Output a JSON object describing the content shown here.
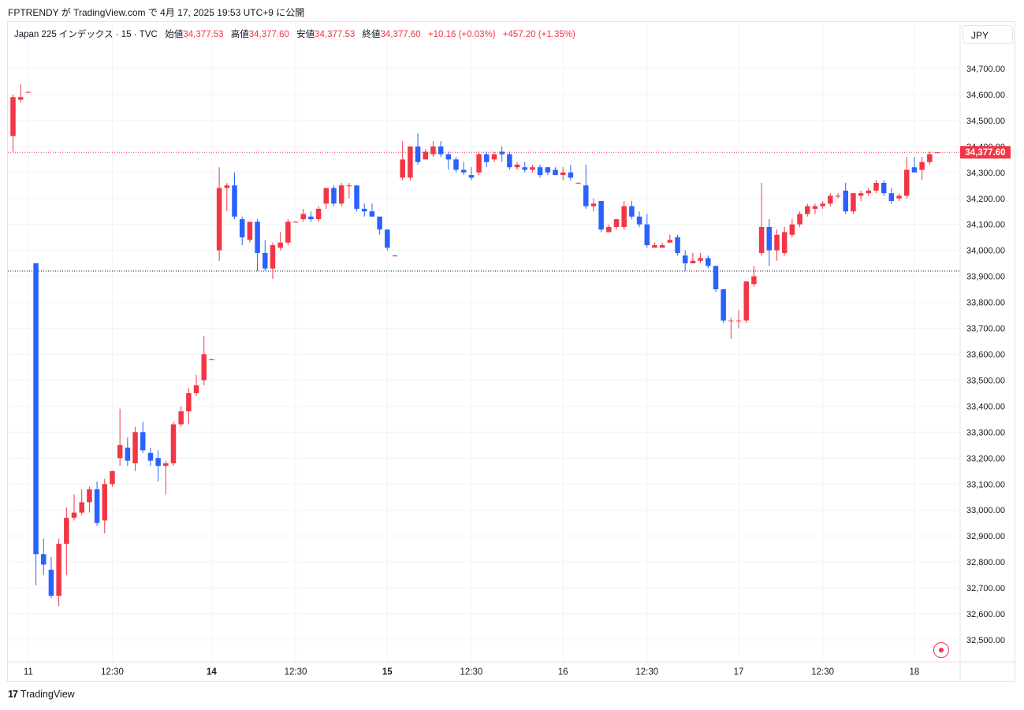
{
  "header": {
    "text": "FPTRENDY が TradingView.com で 4月 17, 2025 19:53 UTC+9 に公開"
  },
  "legend": {
    "symbol": "Japan 225 インデックス · 15 · TVC",
    "open_label": "始値",
    "open_value": "34,377.53",
    "high_label": "高値",
    "high_value": "34,377.60",
    "low_label": "安値",
    "low_value": "34,377.53",
    "close_label": "終値",
    "close_value": "34,377.60",
    "change": "+10.16 (+0.03%)",
    "change2": "+457.20 (+1.35%)"
  },
  "currency": "JPY",
  "footer": {
    "logo_mark": "17",
    "logo_text": "TradingView"
  },
  "icons": {
    "target": "target-icon"
  },
  "colors": {
    "up": "#f23645",
    "down": "#2962ff",
    "grid": "#f0f3fa",
    "text": "#131722"
  },
  "chart_data": {
    "type": "candlestick",
    "ylim": [
      32450,
      34780
    ],
    "y_ticks": [
      "32,500.00",
      "32,600.00",
      "32,700.00",
      "32,800.00",
      "32,900.00",
      "33,000.00",
      "33,100.00",
      "33,200.00",
      "33,300.00",
      "33,400.00",
      "33,500.00",
      "33,600.00",
      "33,700.00",
      "33,800.00",
      "33,900.00",
      "34,000.00",
      "34,100.00",
      "34,200.00",
      "34,300.00",
      "34,400.00",
      "34,500.00",
      "34,600.00",
      "34,700.00"
    ],
    "y_tick_values": [
      32500,
      32600,
      32700,
      32800,
      32900,
      33000,
      33100,
      33200,
      33300,
      33400,
      33500,
      33600,
      33700,
      33800,
      33900,
      34000,
      34100,
      34200,
      34300,
      34400,
      34500,
      34600,
      34700
    ],
    "x_ticks": [
      {
        "label": "11",
        "index": 2,
        "bold": false
      },
      {
        "label": "12:30",
        "index": 13,
        "bold": false
      },
      {
        "label": "14",
        "index": 26,
        "bold": true
      },
      {
        "label": "12:30",
        "index": 37,
        "bold": false
      },
      {
        "label": "15",
        "index": 49,
        "bold": true
      },
      {
        "label": "12:30",
        "index": 60,
        "bold": false
      },
      {
        "label": "16",
        "index": 72,
        "bold": false
      },
      {
        "label": "12:30",
        "index": 83,
        "bold": false
      },
      {
        "label": "17",
        "index": 95,
        "bold": false
      },
      {
        "label": "12:30",
        "index": 106,
        "bold": false
      },
      {
        "label": "18",
        "index": 118,
        "bold": false
      }
    ],
    "last_price": 34377.6,
    "last_price_label": "34,377.60",
    "prev_close": 33920,
    "candles": [
      {
        "i": 0,
        "o": 34440,
        "h": 34600,
        "l": 34380,
        "c": 34590
      },
      {
        "i": 1,
        "o": 34580,
        "h": 34640,
        "l": 34570,
        "c": 34590
      },
      {
        "i": 2,
        "o": 34610,
        "h": 34612,
        "l": 34608,
        "c": 34610
      },
      {
        "i": 3,
        "o": 33950,
        "h": 33950,
        "l": 32710,
        "c": 32830
      },
      {
        "i": 4,
        "o": 32830,
        "h": 32890,
        "l": 32750,
        "c": 32790
      },
      {
        "i": 5,
        "o": 32770,
        "h": 32820,
        "l": 32660,
        "c": 32670
      },
      {
        "i": 6,
        "o": 32670,
        "h": 32890,
        "l": 32630,
        "c": 32870
      },
      {
        "i": 7,
        "o": 32870,
        "h": 33010,
        "l": 32750,
        "c": 32970
      },
      {
        "i": 8,
        "o": 32970,
        "h": 33060,
        "l": 32960,
        "c": 32990
      },
      {
        "i": 9,
        "o": 32990,
        "h": 33080,
        "l": 32980,
        "c": 33030
      },
      {
        "i": 10,
        "o": 33030,
        "h": 33090,
        "l": 32990,
        "c": 33080
      },
      {
        "i": 11,
        "o": 33080,
        "h": 33110,
        "l": 32940,
        "c": 32950
      },
      {
        "i": 12,
        "o": 32960,
        "h": 33120,
        "l": 32910,
        "c": 33100
      },
      {
        "i": 13,
        "o": 33100,
        "h": 33150,
        "l": 33090,
        "c": 33150
      },
      {
        "i": 14,
        "o": 33200,
        "h": 33390,
        "l": 33170,
        "c": 33250
      },
      {
        "i": 15,
        "o": 33240,
        "h": 33280,
        "l": 33170,
        "c": 33190
      },
      {
        "i": 16,
        "o": 33180,
        "h": 33320,
        "l": 33150,
        "c": 33300
      },
      {
        "i": 17,
        "o": 33300,
        "h": 33340,
        "l": 33220,
        "c": 33230
      },
      {
        "i": 18,
        "o": 33220,
        "h": 33240,
        "l": 33170,
        "c": 33190
      },
      {
        "i": 19,
        "o": 33200,
        "h": 33230,
        "l": 33110,
        "c": 33170
      },
      {
        "i": 20,
        "o": 33170,
        "h": 33190,
        "l": 33060,
        "c": 33180
      },
      {
        "i": 21,
        "o": 33180,
        "h": 33340,
        "l": 33170,
        "c": 33330
      },
      {
        "i": 22,
        "o": 33330,
        "h": 33400,
        "l": 33320,
        "c": 33380
      },
      {
        "i": 23,
        "o": 33380,
        "h": 33470,
        "l": 33330,
        "c": 33450
      },
      {
        "i": 24,
        "o": 33450,
        "h": 33520,
        "l": 33440,
        "c": 33480
      },
      {
        "i": 25,
        "o": 33500,
        "h": 33670,
        "l": 33480,
        "c": 33600
      },
      {
        "i": 26,
        "o": 33580,
        "h": 33582,
        "l": 33578,
        "c": 33580
      },
      {
        "i": 27,
        "o": 34000,
        "h": 34320,
        "l": 33960,
        "c": 34240
      },
      {
        "i": 28,
        "o": 34240,
        "h": 34260,
        "l": 34150,
        "c": 34250
      },
      {
        "i": 29,
        "o": 34250,
        "h": 34300,
        "l": 34120,
        "c": 34130
      },
      {
        "i": 30,
        "o": 34120,
        "h": 34130,
        "l": 34020,
        "c": 34050
      },
      {
        "i": 31,
        "o": 34040,
        "h": 34110,
        "l": 34030,
        "c": 34110
      },
      {
        "i": 32,
        "o": 34110,
        "h": 34120,
        "l": 33920,
        "c": 33990
      },
      {
        "i": 33,
        "o": 33990,
        "h": 34040,
        "l": 33920,
        "c": 33930
      },
      {
        "i": 34,
        "o": 33930,
        "h": 34030,
        "l": 33890,
        "c": 34020
      },
      {
        "i": 35,
        "o": 34010,
        "h": 34070,
        "l": 34000,
        "c": 34030
      },
      {
        "i": 36,
        "o": 34030,
        "h": 34120,
        "l": 34020,
        "c": 34110
      },
      {
        "i": 37,
        "o": 34110,
        "h": 34112,
        "l": 34108,
        "c": 34110
      },
      {
        "i": 38,
        "o": 34120,
        "h": 34160,
        "l": 34110,
        "c": 34140
      },
      {
        "i": 39,
        "o": 34130,
        "h": 34150,
        "l": 34110,
        "c": 34120
      },
      {
        "i": 40,
        "o": 34120,
        "h": 34170,
        "l": 34110,
        "c": 34160
      },
      {
        "i": 41,
        "o": 34180,
        "h": 34240,
        "l": 34160,
        "c": 34240
      },
      {
        "i": 42,
        "o": 34240,
        "h": 34250,
        "l": 34170,
        "c": 34180
      },
      {
        "i": 43,
        "o": 34180,
        "h": 34260,
        "l": 34170,
        "c": 34250
      },
      {
        "i": 44,
        "o": 34250,
        "h": 34260,
        "l": 34200,
        "c": 34250
      },
      {
        "i": 45,
        "o": 34250,
        "h": 34250,
        "l": 34150,
        "c": 34160
      },
      {
        "i": 46,
        "o": 34160,
        "h": 34180,
        "l": 34130,
        "c": 34150
      },
      {
        "i": 47,
        "o": 34150,
        "h": 34180,
        "l": 34130,
        "c": 34130
      },
      {
        "i": 48,
        "o": 34130,
        "h": 34130,
        "l": 34060,
        "c": 34080
      },
      {
        "i": 49,
        "o": 34080,
        "h": 34080,
        "l": 34000,
        "c": 34010
      },
      {
        "i": 50,
        "o": 33980,
        "h": 33982,
        "l": 33978,
        "c": 33980
      },
      {
        "i": 51,
        "o": 34280,
        "h": 34420,
        "l": 34270,
        "c": 34350
      },
      {
        "i": 52,
        "o": 34280,
        "h": 34400,
        "l": 34270,
        "c": 34400
      },
      {
        "i": 53,
        "o": 34400,
        "h": 34450,
        "l": 34330,
        "c": 34340
      },
      {
        "i": 54,
        "o": 34350,
        "h": 34390,
        "l": 34350,
        "c": 34380
      },
      {
        "i": 55,
        "o": 34370,
        "h": 34420,
        "l": 34360,
        "c": 34400
      },
      {
        "i": 56,
        "o": 34400,
        "h": 34420,
        "l": 34360,
        "c": 34370
      },
      {
        "i": 57,
        "o": 34370,
        "h": 34380,
        "l": 34310,
        "c": 34350
      },
      {
        "i": 58,
        "o": 34350,
        "h": 34360,
        "l": 34300,
        "c": 34310
      },
      {
        "i": 59,
        "o": 34310,
        "h": 34340,
        "l": 34290,
        "c": 34300
      },
      {
        "i": 60,
        "o": 34290,
        "h": 34320,
        "l": 34270,
        "c": 34280
      },
      {
        "i": 61,
        "o": 34300,
        "h": 34380,
        "l": 34290,
        "c": 34370
      },
      {
        "i": 62,
        "o": 34370,
        "h": 34380,
        "l": 34320,
        "c": 34340
      },
      {
        "i": 63,
        "o": 34350,
        "h": 34380,
        "l": 34340,
        "c": 34370
      },
      {
        "i": 64,
        "o": 34380,
        "h": 34400,
        "l": 34340,
        "c": 34370
      },
      {
        "i": 65,
        "o": 34370,
        "h": 34380,
        "l": 34310,
        "c": 34320
      },
      {
        "i": 66,
        "o": 34320,
        "h": 34340,
        "l": 34310,
        "c": 34330
      },
      {
        "i": 67,
        "o": 34320,
        "h": 34340,
        "l": 34300,
        "c": 34310
      },
      {
        "i": 68,
        "o": 34310,
        "h": 34330,
        "l": 34300,
        "c": 34320
      },
      {
        "i": 69,
        "o": 34320,
        "h": 34330,
        "l": 34280,
        "c": 34290
      },
      {
        "i": 70,
        "o": 34320,
        "h": 34320,
        "l": 34290,
        "c": 34300
      },
      {
        "i": 71,
        "o": 34310,
        "h": 34320,
        "l": 34290,
        "c": 34290
      },
      {
        "i": 72,
        "o": 34290,
        "h": 34320,
        "l": 34270,
        "c": 34300
      },
      {
        "i": 73,
        "o": 34300,
        "h": 34330,
        "l": 34270,
        "c": 34280
      },
      {
        "i": 74,
        "o": 34260,
        "h": 34262,
        "l": 34258,
        "c": 34260
      },
      {
        "i": 75,
        "o": 34250,
        "h": 34330,
        "l": 34160,
        "c": 34170
      },
      {
        "i": 76,
        "o": 34170,
        "h": 34200,
        "l": 34150,
        "c": 34180
      },
      {
        "i": 77,
        "o": 34190,
        "h": 34190,
        "l": 34070,
        "c": 34080
      },
      {
        "i": 78,
        "o": 34070,
        "h": 34100,
        "l": 34070,
        "c": 34090
      },
      {
        "i": 79,
        "o": 34090,
        "h": 34120,
        "l": 34080,
        "c": 34120
      },
      {
        "i": 80,
        "o": 34090,
        "h": 34190,
        "l": 34080,
        "c": 34170
      },
      {
        "i": 81,
        "o": 34170,
        "h": 34190,
        "l": 34120,
        "c": 34130
      },
      {
        "i": 82,
        "o": 34130,
        "h": 34150,
        "l": 34090,
        "c": 34100
      },
      {
        "i": 83,
        "o": 34100,
        "h": 34140,
        "l": 34010,
        "c": 34020
      },
      {
        "i": 84,
        "o": 34010,
        "h": 34030,
        "l": 34010,
        "c": 34020
      },
      {
        "i": 85,
        "o": 34010,
        "h": 34030,
        "l": 34010,
        "c": 34020
      },
      {
        "i": 86,
        "o": 34030,
        "h": 34060,
        "l": 34030,
        "c": 34040
      },
      {
        "i": 87,
        "o": 34050,
        "h": 34060,
        "l": 33980,
        "c": 33990
      },
      {
        "i": 88,
        "o": 33980,
        "h": 34000,
        "l": 33920,
        "c": 33950
      },
      {
        "i": 89,
        "o": 33950,
        "h": 33990,
        "l": 33950,
        "c": 33960
      },
      {
        "i": 90,
        "o": 33960,
        "h": 33990,
        "l": 33950,
        "c": 33970
      },
      {
        "i": 91,
        "o": 33970,
        "h": 33980,
        "l": 33930,
        "c": 33940
      },
      {
        "i": 92,
        "o": 33940,
        "h": 33940,
        "l": 33840,
        "c": 33850
      },
      {
        "i": 93,
        "o": 33850,
        "h": 33850,
        "l": 33720,
        "c": 33730
      },
      {
        "i": 94,
        "o": 33730,
        "h": 33740,
        "l": 33660,
        "c": 33730
      },
      {
        "i": 95,
        "o": 33730,
        "h": 33770,
        "l": 33700,
        "c": 33730
      },
      {
        "i": 96,
        "o": 33730,
        "h": 33880,
        "l": 33720,
        "c": 33880
      },
      {
        "i": 97,
        "o": 33870,
        "h": 33940,
        "l": 33860,
        "c": 33900
      },
      {
        "i": 98,
        "o": 33990,
        "h": 34260,
        "l": 33980,
        "c": 34090
      },
      {
        "i": 99,
        "o": 34090,
        "h": 34120,
        "l": 33940,
        "c": 34000
      },
      {
        "i": 100,
        "o": 34000,
        "h": 34080,
        "l": 33960,
        "c": 34060
      },
      {
        "i": 101,
        "o": 33990,
        "h": 34090,
        "l": 33980,
        "c": 34070
      },
      {
        "i": 102,
        "o": 34060,
        "h": 34120,
        "l": 34050,
        "c": 34100
      },
      {
        "i": 103,
        "o": 34100,
        "h": 34150,
        "l": 34090,
        "c": 34140
      },
      {
        "i": 104,
        "o": 34140,
        "h": 34180,
        "l": 34130,
        "c": 34170
      },
      {
        "i": 105,
        "o": 34160,
        "h": 34180,
        "l": 34140,
        "c": 34170
      },
      {
        "i": 106,
        "o": 34170,
        "h": 34190,
        "l": 34160,
        "c": 34180
      },
      {
        "i": 107,
        "o": 34180,
        "h": 34220,
        "l": 34170,
        "c": 34210
      },
      {
        "i": 108,
        "o": 34210,
        "h": 34220,
        "l": 34200,
        "c": 34210
      },
      {
        "i": 109,
        "o": 34230,
        "h": 34260,
        "l": 34140,
        "c": 34150
      },
      {
        "i": 110,
        "o": 34150,
        "h": 34220,
        "l": 34140,
        "c": 34220
      },
      {
        "i": 111,
        "o": 34210,
        "h": 34230,
        "l": 34190,
        "c": 34220
      },
      {
        "i": 112,
        "o": 34220,
        "h": 34240,
        "l": 34210,
        "c": 34230
      },
      {
        "i": 113,
        "o": 34230,
        "h": 34270,
        "l": 34220,
        "c": 34260
      },
      {
        "i": 114,
        "o": 34260,
        "h": 34270,
        "l": 34210,
        "c": 34220
      },
      {
        "i": 115,
        "o": 34220,
        "h": 34240,
        "l": 34180,
        "c": 34190
      },
      {
        "i": 116,
        "o": 34200,
        "h": 34220,
        "l": 34190,
        "c": 34210
      },
      {
        "i": 117,
        "o": 34210,
        "h": 34360,
        "l": 34200,
        "c": 34310
      },
      {
        "i": 118,
        "o": 34320,
        "h": 34360,
        "l": 34300,
        "c": 34300
      },
      {
        "i": 119,
        "o": 34310,
        "h": 34360,
        "l": 34270,
        "c": 34340
      },
      {
        "i": 120,
        "o": 34340,
        "h": 34380,
        "l": 34330,
        "c": 34370
      },
      {
        "i": 121,
        "o": 34377.53,
        "h": 34377.6,
        "l": 34377.53,
        "c": 34377.6
      }
    ]
  }
}
